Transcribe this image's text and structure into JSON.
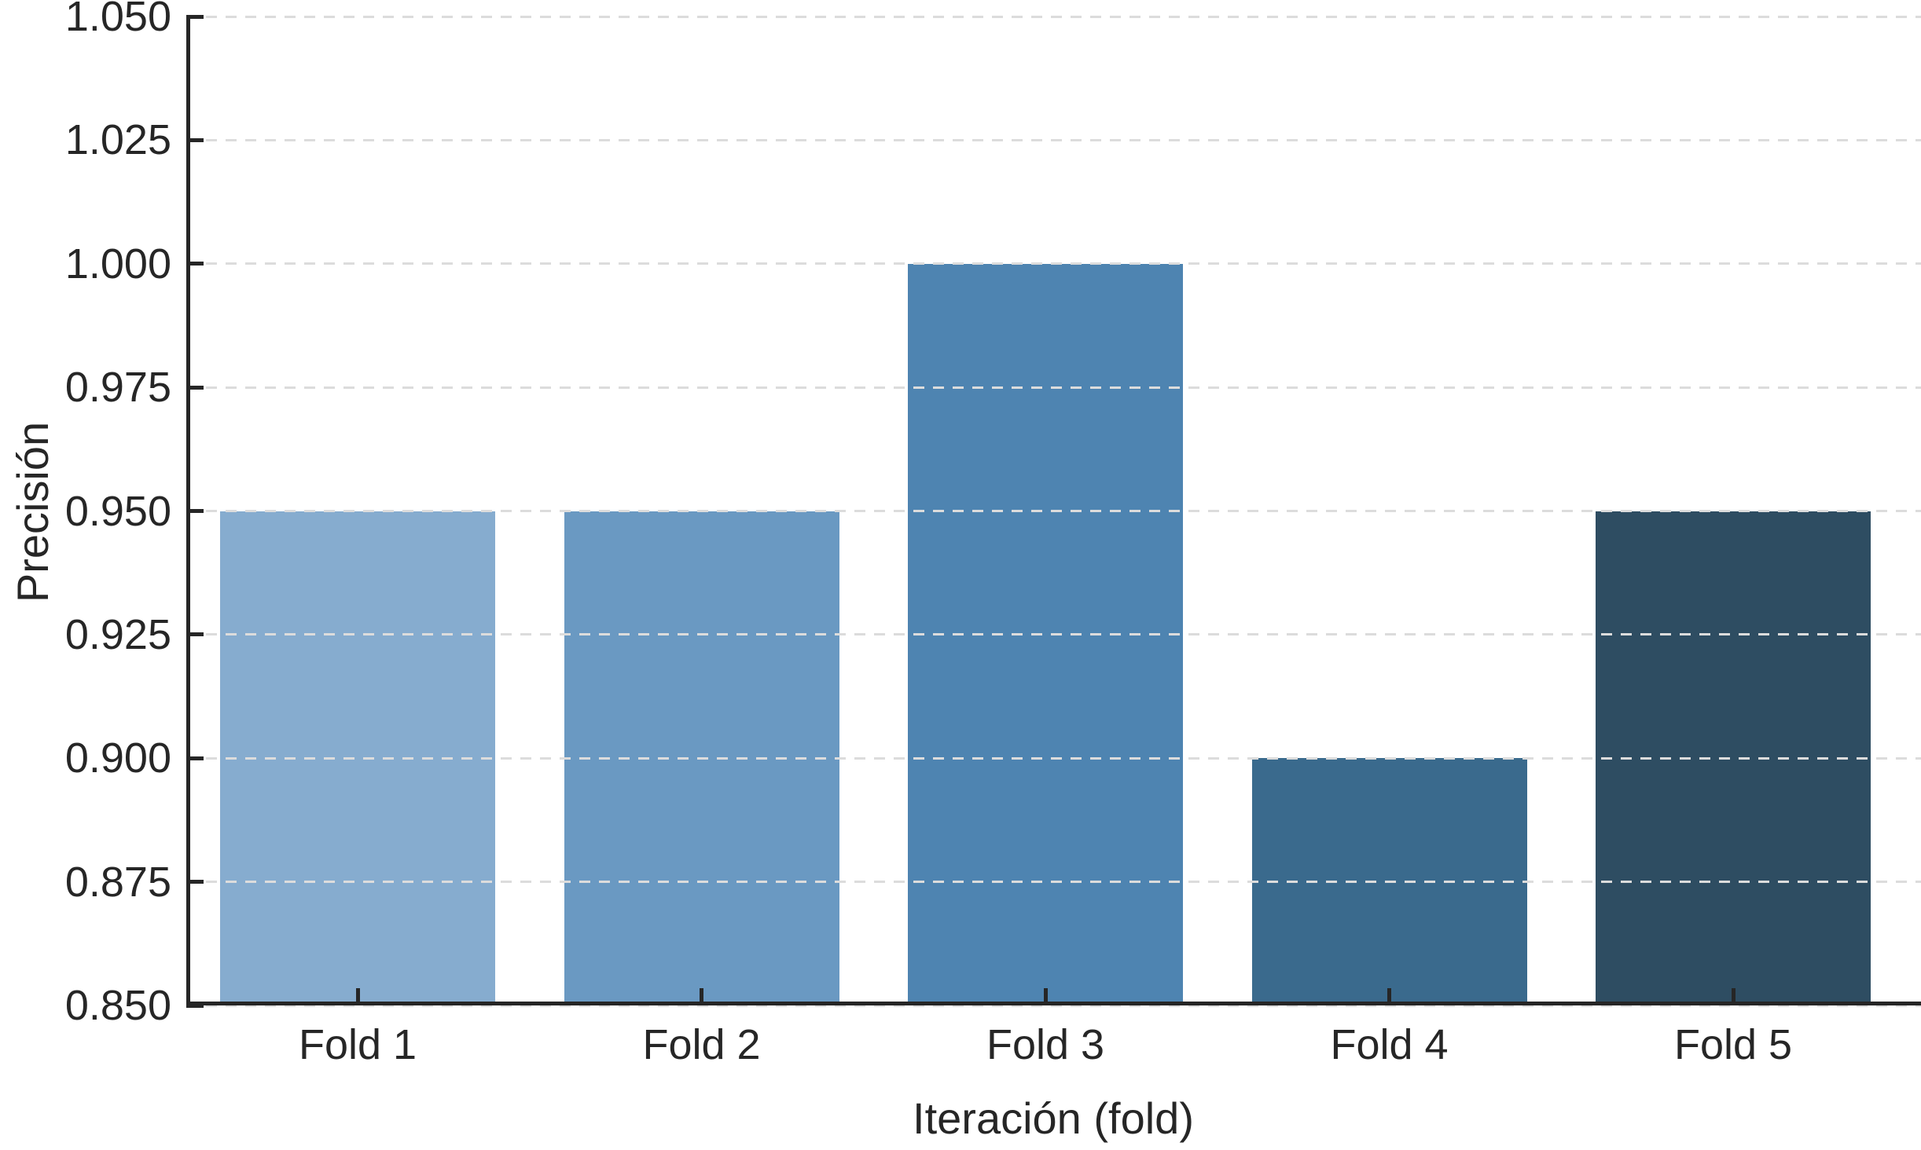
{
  "chart_data": {
    "type": "bar",
    "title": "",
    "categories": [
      "Fold 1",
      "Fold 2",
      "Fold 3",
      "Fold 4",
      "Fold 5"
    ],
    "values": [
      0.95,
      0.95,
      1.0,
      0.9,
      0.95
    ],
    "bar_colors": [
      "#86ACCF",
      "#6A99C2",
      "#4E84B1",
      "#3A6A8D",
      "#2E4D62"
    ],
    "xlabel": "Iteración (fold)",
    "ylabel": "Precisión",
    "ylim": [
      0.85,
      1.05
    ],
    "ytick_values": [
      0.85,
      0.875,
      0.9,
      0.925,
      0.95,
      0.975,
      1.0,
      1.025,
      1.05
    ],
    "ytick_labels": [
      "0.850",
      "0.875",
      "0.900",
      "0.925",
      "0.950",
      "0.975",
      "1.000",
      "1.025",
      "1.050"
    ],
    "grid": "horizontal-dashed",
    "legend_position": "none"
  },
  "style": {
    "background_color": "#ffffff",
    "grid_color": "#dcdcdc",
    "axis_color": "#262626",
    "text_color": "#262626"
  }
}
